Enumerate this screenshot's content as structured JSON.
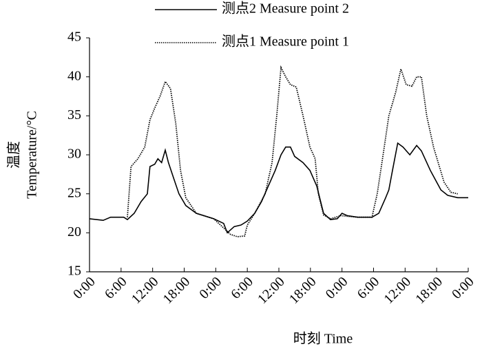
{
  "chart_data": {
    "type": "line",
    "xlabel": "时刻  Time",
    "ylabel": [
      "温度",
      "Temperature/°C"
    ],
    "xlim": [
      0,
      72
    ],
    "xticks": [
      {
        "value": 0,
        "label": "0:00"
      },
      {
        "value": 6,
        "label": "6:00"
      },
      {
        "value": 12,
        "label": "12:00"
      },
      {
        "value": 18,
        "label": "18:00"
      },
      {
        "value": 24,
        "label": "0:00"
      },
      {
        "value": 30,
        "label": "6:00"
      },
      {
        "value": 36,
        "label": "12:00"
      },
      {
        "value": 42,
        "label": "18:00"
      },
      {
        "value": 48,
        "label": "0:00"
      },
      {
        "value": 54,
        "label": "6:00"
      },
      {
        "value": 60,
        "label": "12:00"
      },
      {
        "value": 66,
        "label": "18:00"
      },
      {
        "value": 72,
        "label": "0:00"
      }
    ],
    "ylim": [
      15,
      45
    ],
    "yticks": [
      15,
      20,
      25,
      30,
      35,
      40,
      45
    ],
    "grid": false,
    "legend": "top",
    "series": [
      {
        "name": "测点2 Measure point 2",
        "color": "#000000",
        "dash": "solid",
        "x": [
          0,
          2.6,
          4,
          6.5,
          7.2,
          8.5,
          9.8,
          11,
          11.5,
          12.4,
          13,
          13.7,
          14.4,
          15,
          16,
          17,
          18.3,
          20.3,
          23.6,
          25.5,
          26.2,
          27.5,
          28.8,
          30,
          31.4,
          32.7,
          34,
          35.3,
          36.4,
          37.3,
          38.2,
          39,
          40.6,
          41.9,
          43.2,
          44.5,
          45.8,
          47.1,
          48,
          49,
          51,
          53.7,
          55,
          56.3,
          56.9,
          57.6,
          58.6,
          59.6,
          60.9,
          62.2,
          63.1,
          64.8,
          66.8,
          68.1,
          70,
          72
        ],
        "values": [
          21.8,
          21.6,
          22.0,
          22.0,
          21.7,
          22.5,
          24,
          25,
          28.5,
          28.8,
          29.5,
          29.0,
          30.6,
          29,
          27,
          25,
          23.5,
          22.5,
          21.8,
          21.2,
          20.0,
          20.8,
          21,
          21.5,
          22.5,
          24,
          26,
          28,
          30,
          31.0,
          31.0,
          29.8,
          29,
          28,
          26,
          22.5,
          21.7,
          21.8,
          22.5,
          22.2,
          22,
          22.0,
          22.5,
          24.5,
          25.5,
          28,
          31.5,
          31.0,
          30,
          31.2,
          30.5,
          28,
          25.5,
          24.8,
          24.5,
          24.5
        ]
      },
      {
        "name": "测点1 Measure point 1",
        "color": "#000000",
        "dash": "dotted",
        "x": [
          7.2,
          7.9,
          9.2,
          10.5,
          11.5,
          12.4,
          13.4,
          14.4,
          15.4,
          16.4,
          17.3,
          18.3,
          20.3,
          23.6,
          24.9,
          26.8,
          28.1,
          29.5,
          30,
          31.4,
          33.4,
          34.7,
          35.6,
          36.4,
          37.3,
          38.2,
          39.3,
          40.6,
          41.9,
          42.9,
          43.5,
          44.5,
          45.8,
          47.8,
          51,
          53.7,
          54.7,
          55.6,
          56.9,
          58.2,
          59.2,
          60.2,
          61.3,
          62.2,
          63.1,
          64.1,
          65.4,
          67.4,
          68.7,
          70
        ],
        "values": [
          22,
          28.5,
          29.5,
          31,
          34.5,
          36,
          37.5,
          39.4,
          38.5,
          34,
          28,
          24.5,
          22.5,
          21.8,
          21.0,
          19.8,
          19.5,
          19.6,
          21,
          22.5,
          25,
          29,
          35,
          41.2,
          40,
          39,
          38.7,
          35,
          31,
          29.5,
          25,
          22.3,
          21.8,
          22.2,
          22,
          22.0,
          25,
          29,
          35,
          38,
          41.0,
          39.0,
          38.8,
          40,
          40,
          35,
          31,
          26.5,
          25.2,
          25.0
        ]
      }
    ]
  }
}
